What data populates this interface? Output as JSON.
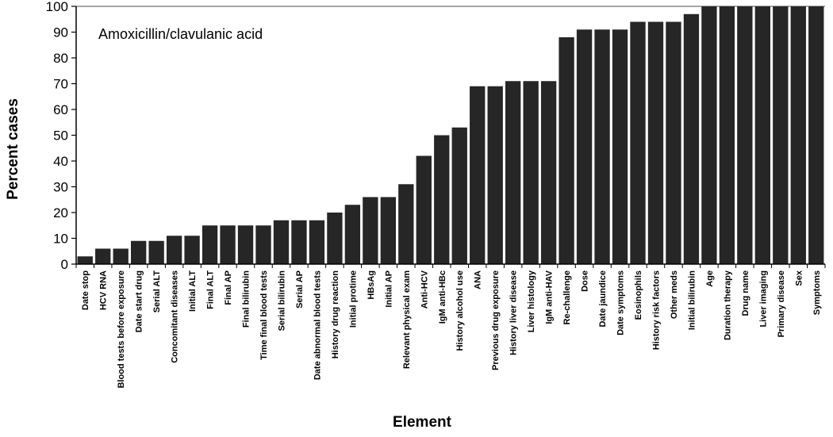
{
  "chart_data": {
    "type": "bar",
    "title": "Amoxicillin/clavulanic acid",
    "xlabel": "Element",
    "ylabel": "Percent cases",
    "ylim": [
      0,
      100
    ],
    "yticks": [
      0,
      10,
      20,
      30,
      40,
      50,
      60,
      70,
      80,
      90,
      100
    ],
    "grid": false,
    "legend": "none",
    "bar_color": "#262626",
    "categories": [
      "Date stop",
      "HCV RNA",
      "Blood tests before exposure",
      "Date start drug",
      "Serial ALT",
      "Concomitant diseases",
      "Initial ALT",
      "Final ALT",
      "Final AP",
      "Final bilirubin",
      "Time final blood tests",
      "Serial bilirubin",
      "Serial AP",
      "Date abnormal blood tests",
      "History drug reaction",
      "Initial protime",
      "HBsAg",
      "Initial AP",
      "Relevant physical exam",
      "Anti-HCV",
      "IgM anti-HBc",
      "History alcohol use",
      "ANA",
      "Previous drug exposure",
      "History liver disease",
      "Liver histology",
      "IgM anti-HAV",
      "Re-challenge",
      "Dose",
      "Date jaundice",
      "Date symptoms",
      "Eosinophils",
      "History risk factors",
      "Other meds",
      "Initial bilirubin",
      "Age",
      "Duration therapy",
      "Drug name",
      "Liver imaging",
      "Primary disease",
      "Sex",
      "Symptoms"
    ],
    "values": [
      3,
      6,
      6,
      9,
      9,
      11,
      11,
      15,
      15,
      15,
      15,
      17,
      17,
      17,
      20,
      23,
      26,
      26,
      31,
      42,
      50,
      53,
      69,
      69,
      71,
      71,
      71,
      88,
      91,
      91,
      91,
      94,
      94,
      94,
      97,
      100,
      100,
      100,
      100,
      100,
      100,
      100
    ]
  }
}
